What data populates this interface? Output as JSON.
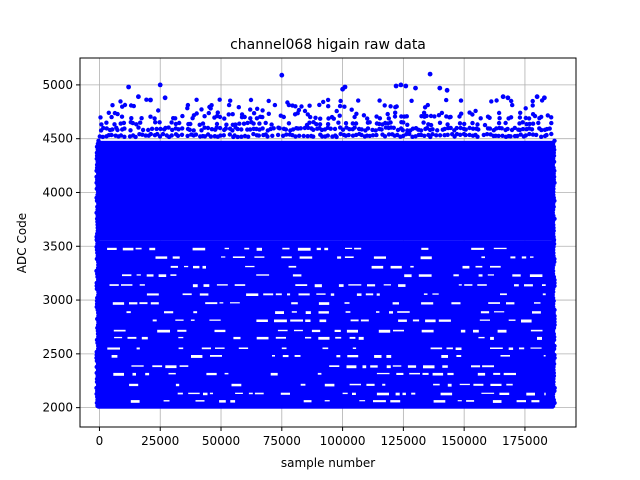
{
  "chart_data": {
    "type": "scatter",
    "title": "channel068 higain raw data",
    "xlabel": "sample number",
    "ylabel": "ADC Code",
    "xlim": [
      -8000,
      196000
    ],
    "ylim": [
      1820,
      5250
    ],
    "x_ticks": [
      0,
      25000,
      50000,
      75000,
      100000,
      125000,
      150000,
      175000
    ],
    "x_tick_labels": [
      "0",
      "25000",
      "50000",
      "75000",
      "100000",
      "125000",
      "150000",
      "175000"
    ],
    "y_ticks": [
      2000,
      2500,
      3000,
      3500,
      4000,
      4500,
      5000
    ],
    "y_tick_labels": [
      "2000",
      "2500",
      "3000",
      "3500",
      "4000",
      "4500",
      "5000"
    ],
    "grid": true,
    "marker_color": "#0000ff",
    "series": [
      {
        "x_range": [
          0,
          186000
        ],
        "dense_bands": [
          {
            "y_range": [
              3550,
              4480
            ],
            "coverage": "solid"
          },
          {
            "y_range": [
              1990,
              3550
            ],
            "coverage": "striated"
          }
        ],
        "upper_rows": [
          4530,
          4590,
          4640,
          4700,
          4730,
          4770,
          4800,
          4850
        ],
        "outliers": [
          {
            "x": 12000,
            "y": 4980
          },
          {
            "x": 16000,
            "y": 4890
          },
          {
            "x": 21000,
            "y": 4860
          },
          {
            "x": 25000,
            "y": 5000
          },
          {
            "x": 27000,
            "y": 4880
          },
          {
            "x": 75000,
            "y": 5090
          },
          {
            "x": 100000,
            "y": 4960
          },
          {
            "x": 101000,
            "y": 4980
          },
          {
            "x": 122000,
            "y": 4990
          },
          {
            "x": 124000,
            "y": 5000
          },
          {
            "x": 126000,
            "y": 4990
          },
          {
            "x": 130000,
            "y": 4970
          },
          {
            "x": 136000,
            "y": 5100
          },
          {
            "x": 140000,
            "y": 4970
          },
          {
            "x": 143000,
            "y": 4950
          },
          {
            "x": 166000,
            "y": 4890
          },
          {
            "x": 168000,
            "y": 4880
          },
          {
            "x": 180000,
            "y": 4890
          },
          {
            "x": 183000,
            "y": 4880
          }
        ]
      }
    ]
  }
}
